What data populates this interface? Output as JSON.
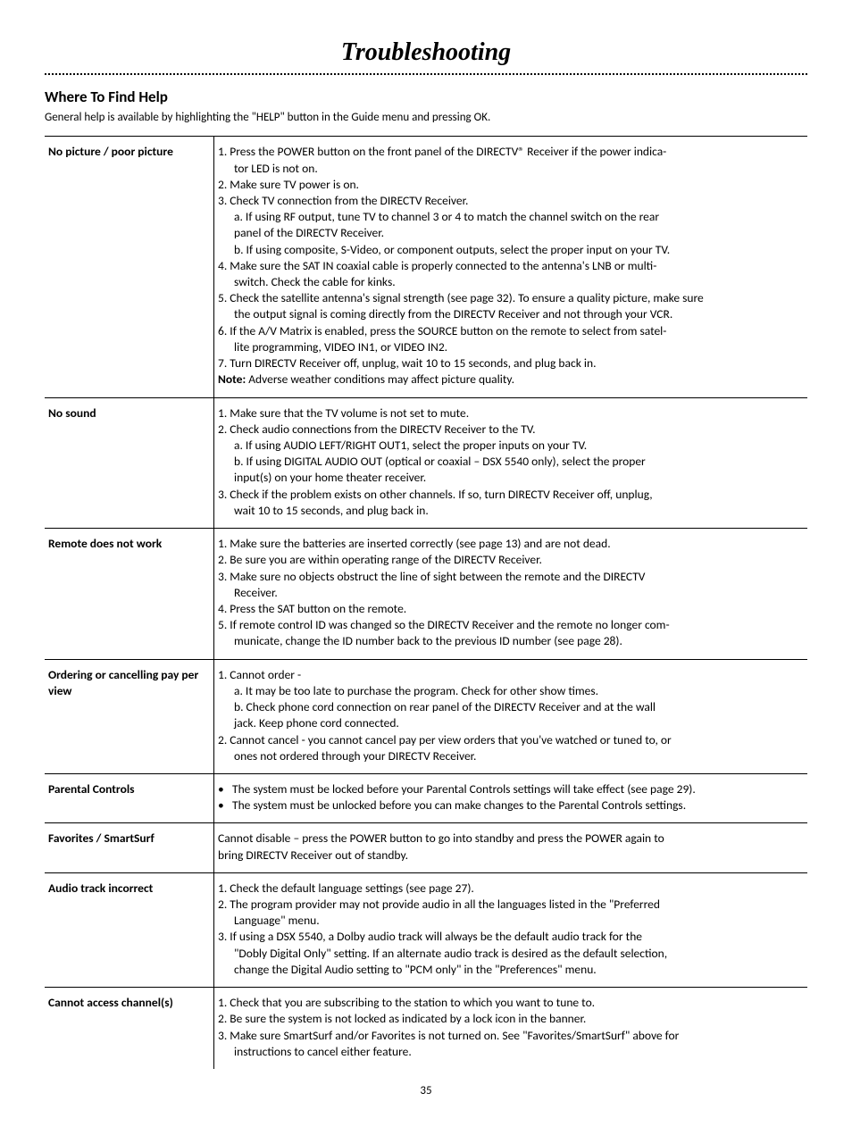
{
  "title": "Troubleshooting",
  "section_head": "Where To Find Help",
  "section_sub": "General help is available by highlighting the \"HELP\" button in the Guide menu and pressing OK.",
  "page_number": "35",
  "rows": [
    {
      "issue": "No picture / poor picture",
      "lines": [
        {
          "t": "1.  Press the POWER button on the front panel of the DIRECTV® Receiver if the power indica-"
        },
        {
          "t": "tor LED is not on.",
          "cls": "indent"
        },
        {
          "t": "2.  Make sure TV power is on."
        },
        {
          "t": "3.  Check TV connection from the DIRECTV Receiver."
        },
        {
          "t": "a. If using RF output, tune TV to channel 3 or 4 to match the channel switch on the rear",
          "cls": "indent"
        },
        {
          "t": "panel of the DIRECTV Receiver.",
          "cls": "indent"
        },
        {
          "t": "b. If using composite, S-Video, or component outputs, select the proper input on your TV.",
          "cls": "indent"
        },
        {
          "t": "4.  Make sure the SAT IN coaxial cable is properly connected to the antenna's LNB or multi-"
        },
        {
          "t": "switch. Check the cable for kinks.",
          "cls": "indent"
        },
        {
          "t": "5.  Check the satellite antenna's signal strength (see page 32). To ensure a quality picture, make sure"
        },
        {
          "t": "the output signal is coming directly from the DIRECTV Receiver and not through your VCR.",
          "cls": "indent"
        },
        {
          "t": "6.  If the A/V Matrix is enabled, press the SOURCE button on the remote to select from satel-"
        },
        {
          "t": "lite programming, VIDEO IN1, or VIDEO IN2.",
          "cls": "indent"
        },
        {
          "t": "7.  Turn DIRECTV Receiver off, unplug, wait 10 to 15 seconds, and plug back in."
        },
        {
          "t": "<b>Note:</b> Adverse weather conditions may affect picture quality.",
          "html": true
        }
      ]
    },
    {
      "issue": "No sound",
      "lines": [
        {
          "t": "1.  Make sure that the TV volume is not set to mute."
        },
        {
          "t": "2.  Check audio connections from the DIRECTV Receiver to the TV."
        },
        {
          "t": "a. If using AUDIO LEFT/RIGHT OUT1, select the proper inputs on your TV.",
          "cls": "indent"
        },
        {
          "t": "b. If using DIGITAL AUDIO OUT (optical or coaxial – DSX 5540 only), select the proper",
          "cls": "indent"
        },
        {
          "t": "input(s) on your home theater receiver.",
          "cls": "indent"
        },
        {
          "t": "3.  Check if the problem exists on other channels. If so, turn DIRECTV Receiver off, unplug,"
        },
        {
          "t": "wait 10 to 15 seconds, and plug back in.",
          "cls": "indent"
        }
      ]
    },
    {
      "issue": "Remote does not work",
      "lines": [
        {
          "t": "1.  Make sure the batteries are inserted correctly (see page 13) and are not dead."
        },
        {
          "t": "2.  Be sure you are within operating range of the DIRECTV Receiver."
        },
        {
          "t": "3.  Make sure no objects obstruct the line of sight between the remote and the DIRECTV"
        },
        {
          "t": "Receiver.",
          "cls": "indent"
        },
        {
          "t": "4.  Press the SAT button on the remote."
        },
        {
          "t": "5.  If remote control ID was changed so the DIRECTV Receiver and the remote no longer com-"
        },
        {
          "t": "municate, change the ID number back to the previous ID number (see page 28).",
          "cls": "indent"
        }
      ]
    },
    {
      "issue": "Ordering or cancelling pay per view",
      "lines": [
        {
          "t": "1.  Cannot order -"
        },
        {
          "t": "a. It may be too late to purchase the program. Check for other show times.",
          "cls": "indent"
        },
        {
          "t": "b. Check phone cord connection on rear panel of the DIRECTV Receiver and at the wall",
          "cls": "indent"
        },
        {
          "t": "jack. Keep phone cord connected.",
          "cls": "indent"
        },
        {
          "t": "2.  Cannot cancel - you cannot cancel pay per view orders that you've watched or tuned to, or"
        },
        {
          "t": "ones not ordered through your DIRECTV Receiver.",
          "cls": "indent"
        }
      ]
    },
    {
      "issue": "Parental Controls",
      "bullets": [
        "The system must be locked before your Parental Controls settings will take effect (see page 29).",
        "The system must be unlocked before you can make changes to the Parental Controls settings."
      ]
    },
    {
      "issue": "Favorites / SmartSurf",
      "lines": [
        {
          "t": "Cannot disable – press the POWER button to go into standby and press the POWER again to"
        },
        {
          "t": "bring DIRECTV Receiver out of standby."
        }
      ]
    },
    {
      "issue": "Audio track incorrect",
      "lines": [
        {
          "t": "1.  Check the default language settings (see page 27)."
        },
        {
          "t": "2.  The program provider may not provide audio in all the languages listed in the \"Preferred"
        },
        {
          "t": "Language\" menu.",
          "cls": "indent"
        },
        {
          "t": "3.  If using a DSX 5540, a Dolby audio track will always be the default audio track for the"
        },
        {
          "t": "\"Dobly Digital Only\" setting. If an alternate audio track is desired as the default selection,",
          "cls": "indent"
        },
        {
          "t": "change the Digital Audio setting to \"PCM only\" in the \"Preferences\" menu.",
          "cls": "indent"
        }
      ]
    },
    {
      "issue": "Cannot access channel(s)",
      "lines": [
        {
          "t": "1.  Check that you are subscribing to the station to which you want to tune to."
        },
        {
          "t": "2.  Be sure the system is not locked as indicated by a lock icon in the banner."
        },
        {
          "t": "3.  Make sure SmartSurf and/or Favorites is not turned on. See \"Favorites/SmartSurf\" above for"
        },
        {
          "t": "instructions to cancel either feature.",
          "cls": "indent"
        }
      ]
    }
  ]
}
